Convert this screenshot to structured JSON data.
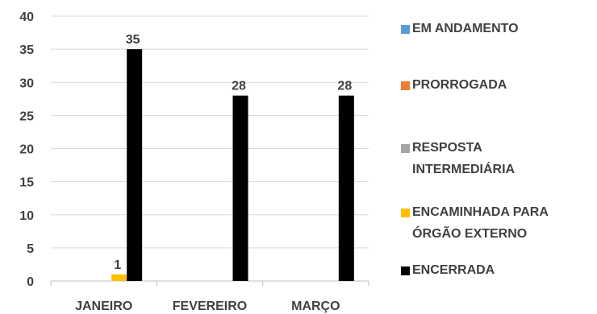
{
  "chart_data": {
    "type": "bar",
    "categories": [
      "JANEIRO",
      "FEVEREIRO",
      "MARÇO"
    ],
    "series": [
      {
        "name": "EM ANDAMENTO",
        "values": [
          0,
          0,
          0
        ],
        "color": "#5B9BD5"
      },
      {
        "name": "PRORROGADA",
        "values": [
          0,
          0,
          0
        ],
        "color": "#ED7D31"
      },
      {
        "name": "RESPOSTA INTERMEDIÁRIA",
        "values": [
          0,
          0,
          0
        ],
        "color": "#A5A5A5"
      },
      {
        "name": "ENCAMINHADA PARA ÓRGÃO EXTERNO",
        "values": [
          1,
          0,
          0
        ],
        "color": "#FFC000"
      },
      {
        "name": "ENCERRADA",
        "values": [
          35,
          28,
          28
        ],
        "color": "#000000"
      }
    ],
    "data_labels": [
      {
        "series": "ENCAMINHADA PARA ÓRGÃO EXTERNO",
        "category": "JANEIRO",
        "text": "1"
      },
      {
        "series": "ENCERRADA",
        "category": "JANEIRO",
        "text": "35"
      },
      {
        "series": "ENCERRADA",
        "category": "FEVEREIRO",
        "text": "28"
      },
      {
        "series": "ENCERRADA",
        "category": "MARÇO",
        "text": "28"
      }
    ],
    "y_ticks": [
      "0",
      "5",
      "10",
      "15",
      "20",
      "25",
      "30",
      "35",
      "40"
    ],
    "ylim": [
      0,
      40
    ],
    "grid": true,
    "legend_position": "right"
  },
  "legend": {
    "items": [
      {
        "lines": [
          "EM ANDAMENTO"
        ],
        "color": "#5B9BD5"
      },
      {
        "lines": [
          "PRORROGADA"
        ],
        "color": "#ED7D31"
      },
      {
        "lines": [
          "RESPOSTA",
          "INTERMEDIÁRIA"
        ],
        "color": "#A5A5A5"
      },
      {
        "lines": [
          "ENCAMINHADA PARA",
          "ÓRGÃO EXTERNO"
        ],
        "color": "#FFC000"
      },
      {
        "lines": [
          "ENCERRADA"
        ],
        "color": "#000000"
      }
    ]
  },
  "colors": {
    "gridline": "#D9D9D9",
    "axis": "#BFBFBF",
    "text": "#404040"
  }
}
